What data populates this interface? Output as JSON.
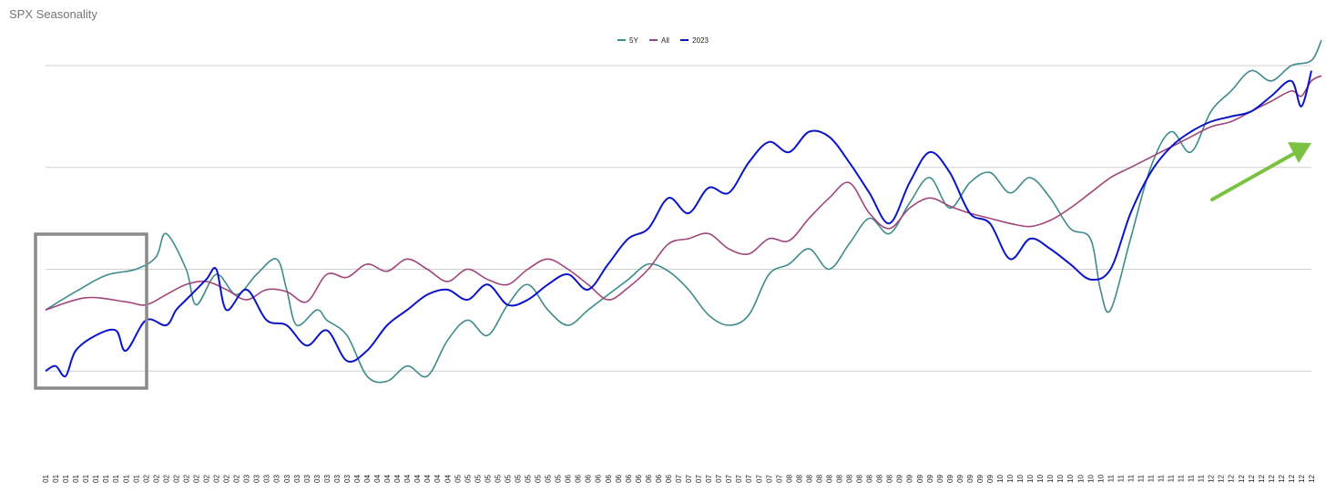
{
  "chart_data": {
    "type": "line",
    "title": "SPX Seasonality",
    "xlabel": "",
    "ylabel": "",
    "ylim": [
      0,
      4
    ],
    "grid": "horizontal",
    "legend": "top-center",
    "x_tick_labels": [
      "01",
      "01",
      "01",
      "01",
      "01",
      "01",
      "01",
      "01",
      "01",
      "01",
      "02",
      "02",
      "02",
      "02",
      "02",
      "02",
      "02",
      "02",
      "02",
      "02",
      "03",
      "03",
      "03",
      "03",
      "03",
      "03",
      "03",
      "03",
      "03",
      "03",
      "03",
      "04",
      "04",
      "04",
      "04",
      "04",
      "04",
      "04",
      "04",
      "04",
      "04",
      "05",
      "05",
      "05",
      "05",
      "05",
      "05",
      "05",
      "05",
      "05",
      "05",
      "05",
      "06",
      "06",
      "06",
      "06",
      "06",
      "06",
      "06",
      "06",
      "06",
      "06",
      "06",
      "07",
      "07",
      "07",
      "07",
      "07",
      "07",
      "07",
      "07",
      "07",
      "07",
      "07",
      "08",
      "08",
      "08",
      "08",
      "08",
      "08",
      "08",
      "08",
      "08",
      "08",
      "08",
      "09",
      "09",
      "09",
      "09",
      "09",
      "09",
      "09",
      "09",
      "09",
      "09",
      "10",
      "10",
      "10",
      "10",
      "10",
      "10",
      "10",
      "10",
      "10",
      "10",
      "10",
      "11",
      "11",
      "11",
      "11",
      "11",
      "11",
      "11",
      "11",
      "11",
      "11",
      "12",
      "12",
      "12",
      "12",
      "12",
      "12",
      "12",
      "12",
      "12",
      "12",
      "12"
    ],
    "series": [
      {
        "name": "5Y",
        "color": "#3d8b8b",
        "values": [
          [
            0,
            1.6
          ],
          [
            3,
            1.78
          ],
          [
            6,
            1.94
          ],
          [
            9,
            2.0
          ],
          [
            11,
            2.12
          ],
          [
            12,
            2.35
          ],
          [
            14,
            2.0
          ],
          [
            15,
            1.65
          ],
          [
            17,
            1.95
          ],
          [
            19,
            1.75
          ],
          [
            21,
            1.95
          ],
          [
            23,
            2.1
          ],
          [
            24,
            1.8
          ],
          [
            25,
            1.45
          ],
          [
            27,
            1.6
          ],
          [
            28,
            1.5
          ],
          [
            30,
            1.35
          ],
          [
            32,
            0.95
          ],
          [
            34,
            0.9
          ],
          [
            36,
            1.05
          ],
          [
            38,
            0.95
          ],
          [
            40,
            1.3
          ],
          [
            42,
            1.5
          ],
          [
            44,
            1.35
          ],
          [
            46,
            1.65
          ],
          [
            48,
            1.85
          ],
          [
            50,
            1.6
          ],
          [
            52,
            1.45
          ],
          [
            54,
            1.6
          ],
          [
            56,
            1.75
          ],
          [
            58,
            1.9
          ],
          [
            60,
            2.05
          ],
          [
            62,
            1.98
          ],
          [
            64,
            1.8
          ],
          [
            66,
            1.55
          ],
          [
            68,
            1.45
          ],
          [
            70,
            1.55
          ],
          [
            72,
            1.95
          ],
          [
            74,
            2.05
          ],
          [
            76,
            2.2
          ],
          [
            78,
            2.0
          ],
          [
            80,
            2.25
          ],
          [
            82,
            2.5
          ],
          [
            84,
            2.35
          ],
          [
            86,
            2.65
          ],
          [
            88,
            2.9
          ],
          [
            90,
            2.6
          ],
          [
            92,
            2.85
          ],
          [
            94,
            2.95
          ],
          [
            96,
            2.75
          ],
          [
            98,
            2.9
          ],
          [
            100,
            2.7
          ],
          [
            102,
            2.4
          ],
          [
            104,
            2.3
          ],
          [
            105,
            1.8
          ],
          [
            106,
            1.6
          ],
          [
            108,
            2.3
          ],
          [
            110,
            3.0
          ],
          [
            112,
            3.35
          ],
          [
            114,
            3.15
          ],
          [
            116,
            3.55
          ],
          [
            118,
            3.75
          ],
          [
            120,
            3.95
          ],
          [
            122,
            3.85
          ],
          [
            124,
            4.0
          ],
          [
            126,
            4.05
          ],
          [
            127,
            4.25
          ]
        ]
      },
      {
        "name": "All",
        "color": "#a0457a",
        "values": [
          [
            0,
            1.6
          ],
          [
            4,
            1.72
          ],
          [
            8,
            1.68
          ],
          [
            10,
            1.65
          ],
          [
            12,
            1.75
          ],
          [
            14,
            1.85
          ],
          [
            16,
            1.88
          ],
          [
            18,
            1.8
          ],
          [
            20,
            1.7
          ],
          [
            22,
            1.8
          ],
          [
            24,
            1.78
          ],
          [
            26,
            1.68
          ],
          [
            28,
            1.95
          ],
          [
            30,
            1.92
          ],
          [
            32,
            2.05
          ],
          [
            34,
            1.98
          ],
          [
            36,
            2.1
          ],
          [
            38,
            2.0
          ],
          [
            40,
            1.88
          ],
          [
            42,
            2.0
          ],
          [
            44,
            1.9
          ],
          [
            46,
            1.85
          ],
          [
            48,
            2.0
          ],
          [
            50,
            2.1
          ],
          [
            52,
            2.0
          ],
          [
            54,
            1.85
          ],
          [
            56,
            1.7
          ],
          [
            58,
            1.82
          ],
          [
            60,
            2.0
          ],
          [
            62,
            2.25
          ],
          [
            64,
            2.3
          ],
          [
            66,
            2.35
          ],
          [
            68,
            2.2
          ],
          [
            70,
            2.15
          ],
          [
            72,
            2.3
          ],
          [
            74,
            2.28
          ],
          [
            76,
            2.5
          ],
          [
            78,
            2.7
          ],
          [
            80,
            2.85
          ],
          [
            82,
            2.55
          ],
          [
            84,
            2.4
          ],
          [
            86,
            2.6
          ],
          [
            88,
            2.7
          ],
          [
            90,
            2.62
          ],
          [
            92,
            2.55
          ],
          [
            94,
            2.5
          ],
          [
            96,
            2.45
          ],
          [
            98,
            2.42
          ],
          [
            100,
            2.48
          ],
          [
            102,
            2.6
          ],
          [
            104,
            2.75
          ],
          [
            106,
            2.9
          ],
          [
            108,
            3.0
          ],
          [
            110,
            3.1
          ],
          [
            112,
            3.2
          ],
          [
            114,
            3.3
          ],
          [
            116,
            3.4
          ],
          [
            118,
            3.45
          ],
          [
            120,
            3.55
          ],
          [
            122,
            3.65
          ],
          [
            124,
            3.75
          ],
          [
            125,
            3.7
          ],
          [
            126,
            3.85
          ],
          [
            127,
            3.9
          ]
        ]
      },
      {
        "name": "2023",
        "color": "#0a14c8",
        "values": [
          [
            0,
            1.0
          ],
          [
            1,
            1.05
          ],
          [
            2,
            0.95
          ],
          [
            3,
            1.2
          ],
          [
            5,
            1.35
          ],
          [
            7,
            1.4
          ],
          [
            8,
            1.2
          ],
          [
            10,
            1.5
          ],
          [
            12,
            1.45
          ],
          [
            13,
            1.6
          ],
          [
            14,
            1.7
          ],
          [
            16,
            1.9
          ],
          [
            17,
            2.0
          ],
          [
            18,
            1.6
          ],
          [
            20,
            1.8
          ],
          [
            22,
            1.5
          ],
          [
            24,
            1.45
          ],
          [
            26,
            1.25
          ],
          [
            28,
            1.4
          ],
          [
            30,
            1.1
          ],
          [
            32,
            1.2
          ],
          [
            34,
            1.45
          ],
          [
            36,
            1.6
          ],
          [
            38,
            1.75
          ],
          [
            40,
            1.8
          ],
          [
            42,
            1.7
          ],
          [
            44,
            1.85
          ],
          [
            46,
            1.65
          ],
          [
            48,
            1.7
          ],
          [
            50,
            1.85
          ],
          [
            52,
            1.95
          ],
          [
            54,
            1.8
          ],
          [
            56,
            2.05
          ],
          [
            58,
            2.3
          ],
          [
            60,
            2.4
          ],
          [
            62,
            2.7
          ],
          [
            64,
            2.55
          ],
          [
            66,
            2.8
          ],
          [
            68,
            2.75
          ],
          [
            70,
            3.05
          ],
          [
            72,
            3.25
          ],
          [
            74,
            3.15
          ],
          [
            76,
            3.35
          ],
          [
            78,
            3.3
          ],
          [
            80,
            3.05
          ],
          [
            82,
            2.75
          ],
          [
            84,
            2.45
          ],
          [
            86,
            2.85
          ],
          [
            88,
            3.15
          ],
          [
            90,
            2.95
          ],
          [
            92,
            2.55
          ],
          [
            94,
            2.45
          ],
          [
            96,
            2.1
          ],
          [
            98,
            2.3
          ],
          [
            100,
            2.2
          ],
          [
            102,
            2.05
          ],
          [
            104,
            1.9
          ],
          [
            106,
            2.0
          ],
          [
            108,
            2.55
          ],
          [
            110,
            2.95
          ],
          [
            112,
            3.2
          ],
          [
            114,
            3.35
          ],
          [
            116,
            3.45
          ],
          [
            118,
            3.5
          ],
          [
            120,
            3.55
          ],
          [
            122,
            3.7
          ],
          [
            124,
            3.85
          ],
          [
            125,
            3.6
          ],
          [
            126,
            3.95
          ]
        ]
      }
    ]
  }
}
